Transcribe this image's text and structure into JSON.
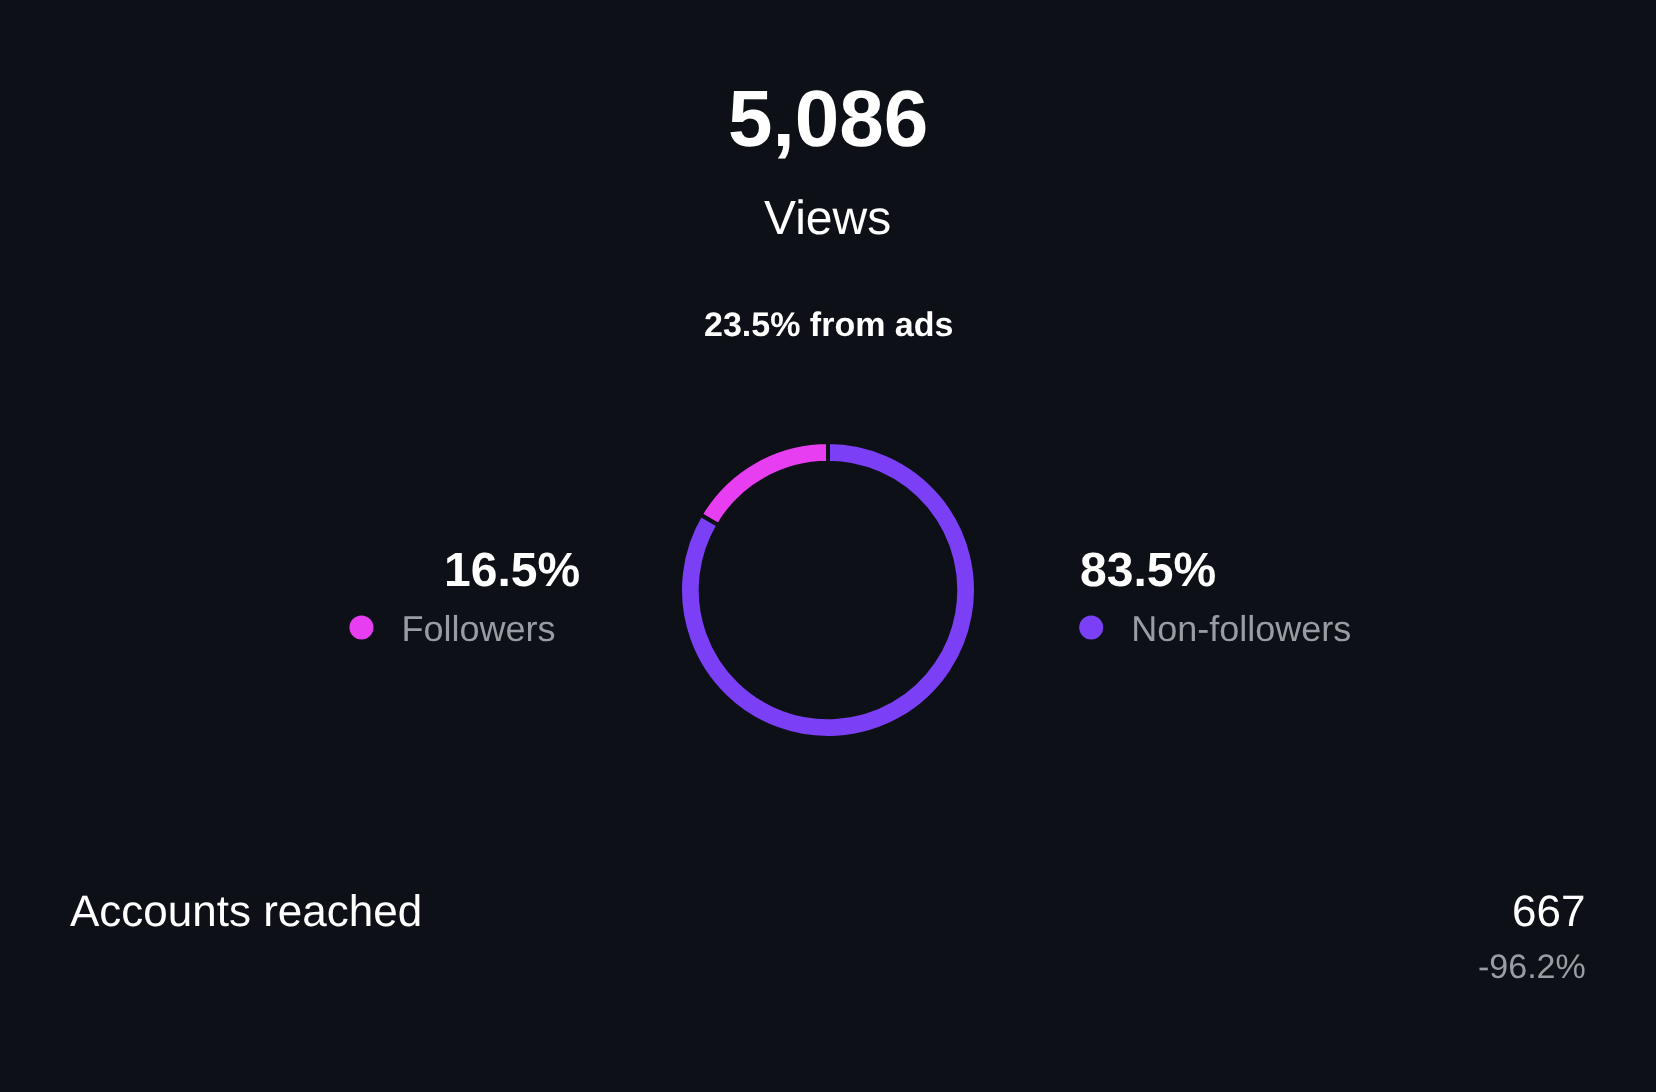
{
  "chart_data": {
    "type": "donut",
    "title": "5,086",
    "subtitle": "Views",
    "categories": [
      "Followers",
      "Non-followers"
    ],
    "values": [
      16.5,
      83.5
    ],
    "value_labels": [
      "16.5%",
      "83.5%"
    ],
    "colors": [
      "#e63ef0",
      "#7b3ff5"
    ],
    "annotations": [
      "23.5% from ads",
      "Accounts reached",
      "667",
      "-96.2%"
    ],
    "legend": "bottom right"
  }
}
